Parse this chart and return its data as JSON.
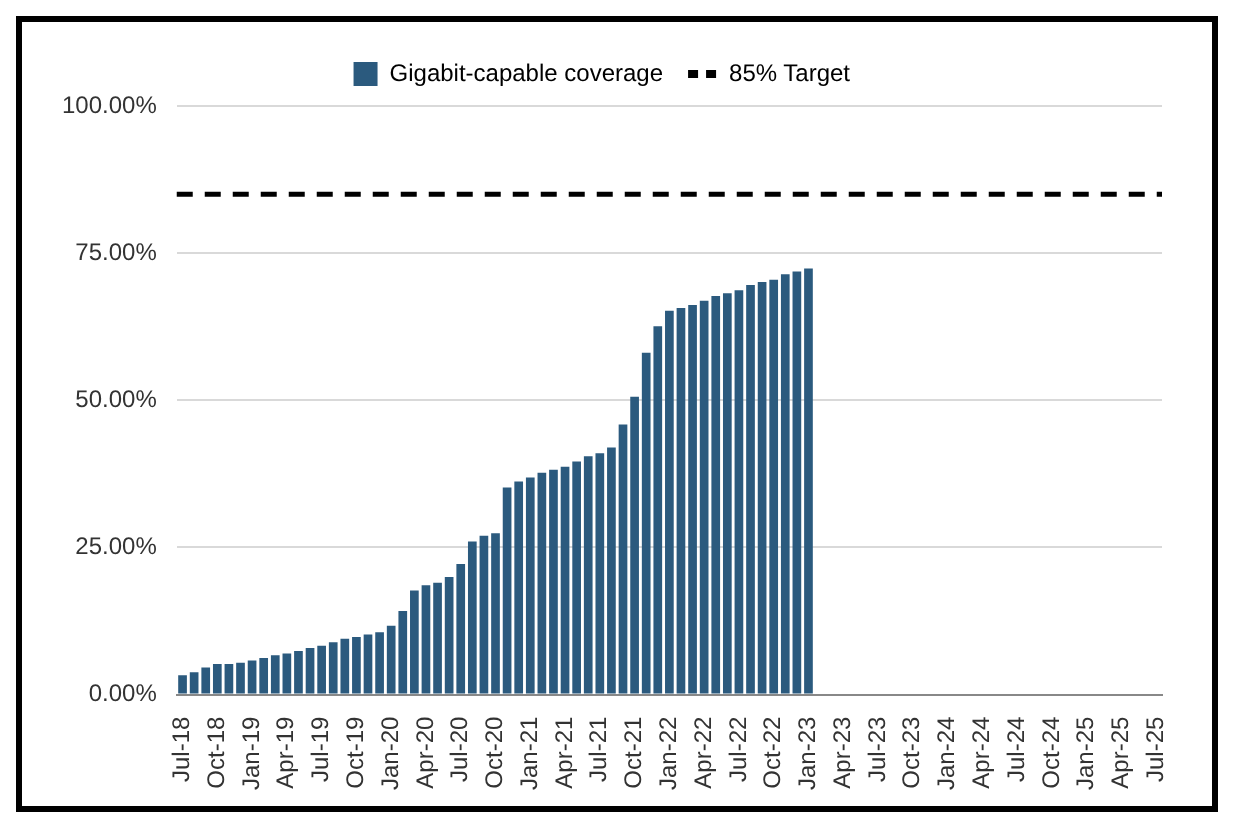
{
  "chart_data": {
    "type": "bar",
    "categories": [
      "Jul-18",
      null,
      null,
      "Oct-18",
      null,
      null,
      "Jan-19",
      null,
      null,
      "Apr-19",
      null,
      null,
      "Jul-19",
      null,
      null,
      "Oct-19",
      null,
      null,
      "Jan-20",
      null,
      null,
      "Apr-20",
      null,
      null,
      "Jul-20",
      null,
      null,
      "Oct-20",
      null,
      null,
      "Jan-21",
      null,
      null,
      "Apr-21",
      null,
      null,
      "Jul-21",
      null,
      null,
      "Oct-21",
      null,
      null,
      "Jan-22",
      null,
      null,
      "Apr-22",
      null,
      null,
      "Jul-22",
      null,
      null,
      "Oct-22",
      null,
      null,
      "Jan-23",
      null,
      null,
      "Apr-23",
      null,
      null,
      "Jul-23",
      null,
      null,
      "Oct-23",
      null,
      null,
      "Jan-24",
      null,
      null,
      "Apr-24",
      null,
      null,
      "Jul-24",
      null,
      null,
      "Oct-24",
      null,
      null,
      "Jan-25",
      null,
      null,
      "Apr-25",
      null,
      null,
      "Jul-25"
    ],
    "series": [
      {
        "name": "Gigabit-capable coverage",
        "color": "#2b5a7e",
        "values": [
          3.3,
          3.8,
          4.6,
          5.2,
          5.2,
          5.4,
          5.8,
          6.2,
          6.7,
          7.0,
          7.4,
          7.9,
          8.3,
          8.9,
          9.5,
          9.8,
          10.2,
          10.6,
          11.7,
          14.2,
          17.7,
          18.6,
          19.0,
          20.0,
          22.2,
          26.0,
          27.0,
          27.4,
          35.2,
          36.2,
          36.9,
          37.7,
          38.2,
          38.7,
          39.6,
          40.5,
          41.0,
          42.0,
          45.9,
          50.6,
          58.1,
          62.6,
          65.2,
          65.7,
          66.2,
          66.9,
          67.7,
          68.2,
          68.7,
          69.6,
          70.1,
          70.5,
          71.4,
          71.9,
          72.4,
          null,
          null,
          null,
          null,
          null,
          null,
          null,
          null,
          null,
          null,
          null,
          null,
          null,
          null,
          null,
          null,
          null,
          null,
          null,
          null,
          null,
          null,
          null,
          null,
          null,
          null,
          null,
          null,
          null,
          null
        ]
      }
    ],
    "ylim": [
      0,
      100
    ],
    "yticks": [
      {
        "value": 0,
        "label": "0.00%"
      },
      {
        "value": 25,
        "label": "25.00%"
      },
      {
        "value": 50,
        "label": "50.00%"
      },
      {
        "value": 75,
        "label": "75.00%"
      },
      {
        "value": 100,
        "label": "100.00%"
      }
    ],
    "ref_lines": [
      {
        "axis": "y",
        "value": 85,
        "label": "85% Target",
        "color": "#000000",
        "line_style": "dashed"
      }
    ],
    "grid": "y",
    "legend": "top"
  }
}
